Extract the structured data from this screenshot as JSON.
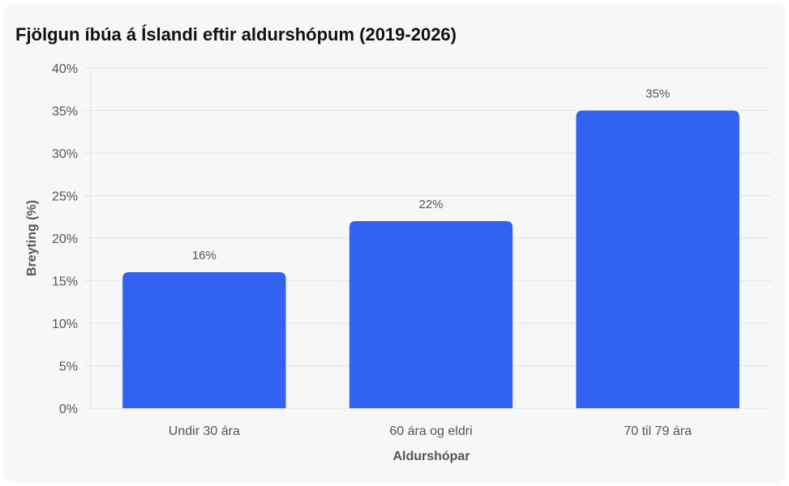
{
  "chart_data": {
    "type": "bar",
    "title": "Fjölgun íbúa á Íslandi eftir aldurshópum (2019-2026)",
    "xlabel": "Aldurshópar",
    "ylabel": "Breyting (%)",
    "categories": [
      "Undir 30 ára",
      "60 ára og eldri",
      "70 til 79 ára"
    ],
    "values": [
      16,
      22,
      35
    ],
    "value_labels": [
      "16%",
      "22%",
      "35%"
    ],
    "ylim": [
      0,
      40
    ],
    "yticks": [
      0,
      5,
      10,
      15,
      20,
      25,
      30,
      35,
      40
    ],
    "ytick_labels": [
      "0%",
      "5%",
      "10%",
      "15%",
      "20%",
      "25%",
      "30%",
      "35%",
      "40%"
    ],
    "grid": true,
    "legend": "none",
    "bar_color": "#3262f0"
  }
}
